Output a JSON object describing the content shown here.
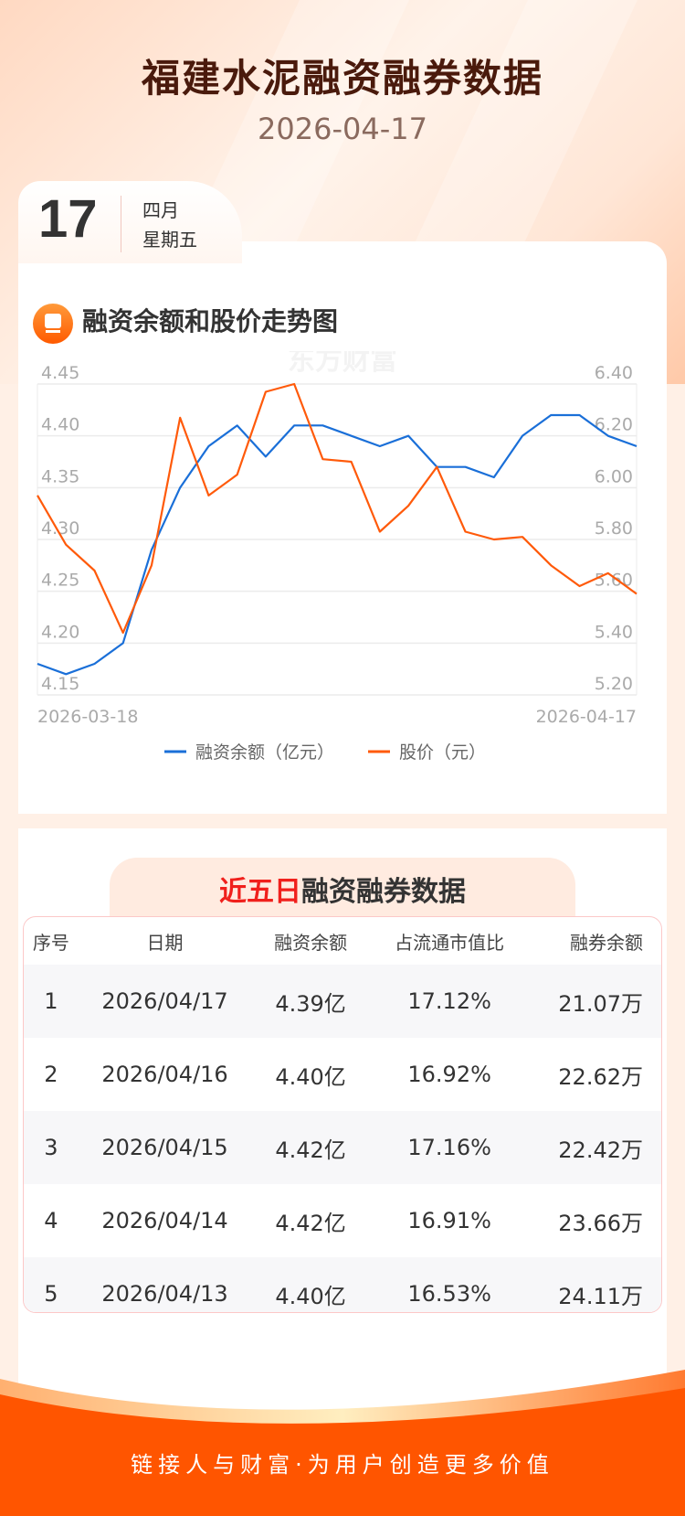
{
  "header": {
    "title": "福建水泥融资融券数据",
    "date": "2026-04-17"
  },
  "date_tab": {
    "day": "17",
    "month": "四月",
    "weekday": "星期五"
  },
  "chart_section": {
    "title": "融资余额和股价走势图",
    "icon": "chart-icon",
    "watermark": "东方财富"
  },
  "chart_data": {
    "type": "line",
    "x_start_label": "2026-03-18",
    "x_end_label": "2026-04-17",
    "left_axis": {
      "ticks": [
        "4.45",
        "4.40",
        "4.35",
        "4.30",
        "4.25",
        "4.20",
        "4.15"
      ],
      "range": [
        4.15,
        4.45
      ]
    },
    "right_axis": {
      "ticks": [
        "6.40",
        "6.20",
        "6.00",
        "5.80",
        "5.60",
        "5.40",
        "5.20"
      ],
      "range": [
        5.2,
        6.4
      ]
    },
    "series": [
      {
        "name": "融资余额（亿元）",
        "axis": "left",
        "color": "#1a6fd8",
        "values": [
          4.18,
          4.17,
          4.18,
          4.2,
          4.29,
          4.35,
          4.39,
          4.41,
          4.38,
          4.41,
          4.41,
          4.4,
          4.39,
          4.4,
          4.37,
          4.37,
          4.36,
          4.4,
          4.42,
          4.42,
          4.4,
          4.39
        ]
      },
      {
        "name": "股价（元）",
        "axis": "right",
        "color": "#ff5a0a",
        "values": [
          5.97,
          5.78,
          5.68,
          5.44,
          5.7,
          6.27,
          5.97,
          6.05,
          6.37,
          6.4,
          6.11,
          6.1,
          5.83,
          5.93,
          6.08,
          5.83,
          5.8,
          5.81,
          5.7,
          5.62,
          5.67,
          5.59
        ]
      }
    ],
    "grid": true,
    "legend": "bottom"
  },
  "table": {
    "title_red": "近五日",
    "title_rest": "融资融券数据",
    "headers": [
      "序号",
      "日期",
      "融资余额",
      "占流通市值比",
      "融券余额"
    ],
    "rows": [
      [
        "1",
        "2026/04/17",
        "4.39亿",
        "17.12%",
        "21.07万"
      ],
      [
        "2",
        "2026/04/16",
        "4.40亿",
        "16.92%",
        "22.62万"
      ],
      [
        "3",
        "2026/04/15",
        "4.42亿",
        "17.16%",
        "22.42万"
      ],
      [
        "4",
        "2026/04/14",
        "4.42亿",
        "16.91%",
        "23.66万"
      ],
      [
        "5",
        "2026/04/13",
        "4.40亿",
        "16.53%",
        "24.11万"
      ]
    ]
  },
  "footer": {
    "slogan": "链接人与财富·为用户创造更多价值"
  }
}
